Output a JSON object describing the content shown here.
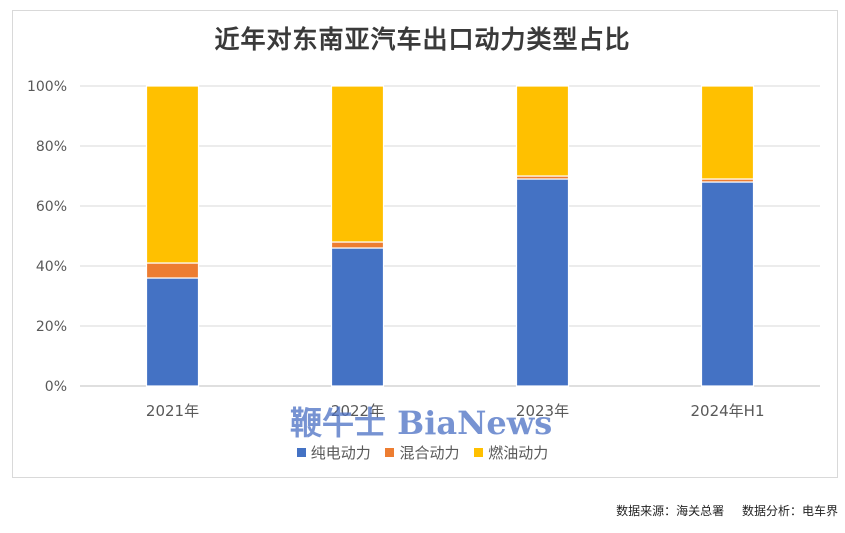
{
  "chart_data": {
    "type": "bar",
    "stacked": true,
    "title": "近年对东南亚汽车出口动力类型占比",
    "categories": [
      "2021年",
      "2022年",
      "2023年",
      "2024年H1"
    ],
    "series": [
      {
        "name": "纯电动力",
        "color": "#4472C4",
        "values": [
          36,
          46,
          69,
          68
        ]
      },
      {
        "name": "混合动力",
        "color": "#ED7D31",
        "values": [
          5,
          2,
          1,
          1
        ]
      },
      {
        "name": "燃油动力",
        "color": "#FFC000",
        "values": [
          59,
          52,
          30,
          31
        ]
      }
    ],
    "ylim": [
      0,
      100
    ],
    "yticks": [
      "0%",
      "20%",
      "40%",
      "60%",
      "80%",
      "100%"
    ],
    "grid": true,
    "legend_position": "bottom"
  },
  "watermark": {
    "text": "鞭牛士 BiaNews",
    "color": "#4a6fc4"
  },
  "footer": {
    "source": "数据来源：海关总署",
    "analysis": "数据分析：电车界"
  }
}
